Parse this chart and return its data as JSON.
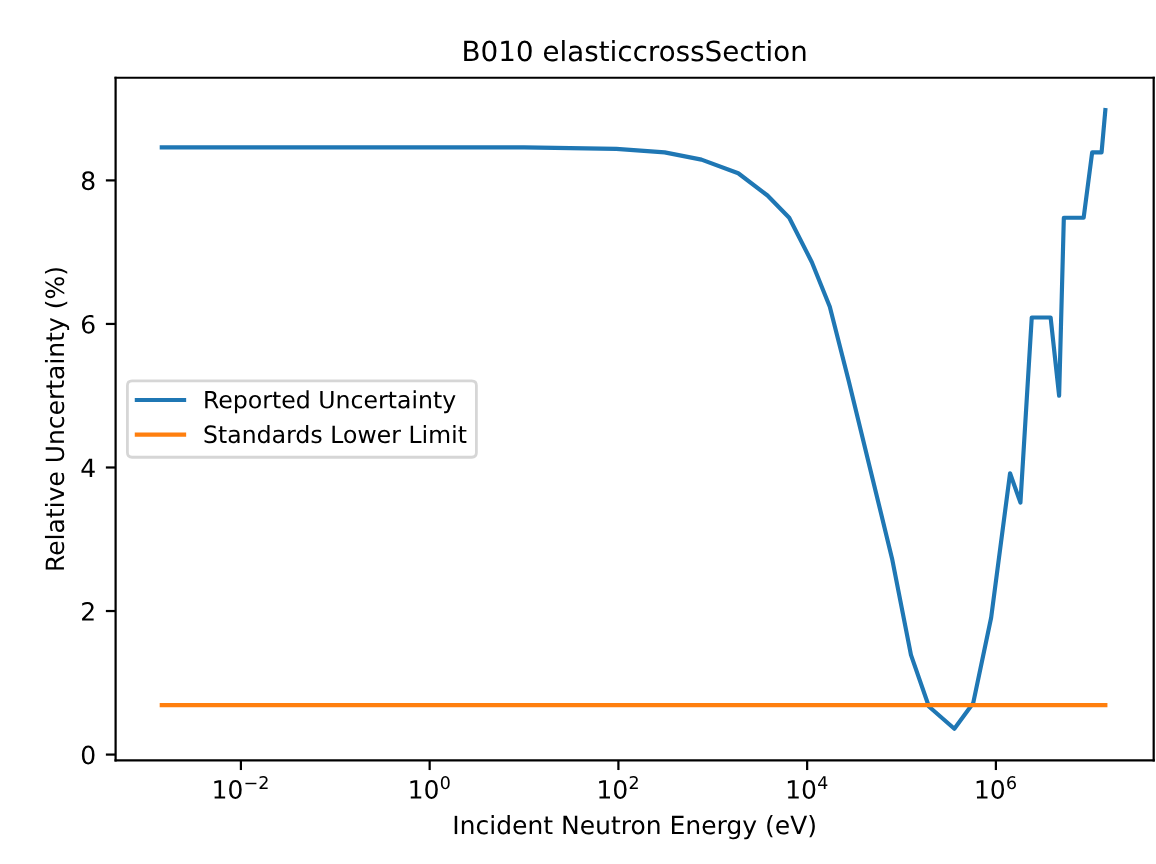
{
  "chart_data": {
    "type": "line",
    "title": "B010 elasticcrossSection",
    "xlabel": "Incident Neutron Energy (eV)",
    "ylabel": "Relative Uncertainty (%)",
    "log": "x",
    "xlim": [
      0.00047,
      47000000
    ],
    "ylim": [
      -0.08,
      9.43
    ],
    "xticks": [
      {
        "value": 0.01,
        "label": "10$^{−2}$"
      },
      {
        "value": 1,
        "label": "10$^{0}$"
      },
      {
        "value": 100,
        "label": "10$^{2}$"
      },
      {
        "value": 10000,
        "label": "10$^{4}$"
      },
      {
        "value": 1000000,
        "label": "10$^{6}$"
      }
    ],
    "yticks": [
      0,
      2,
      4,
      6,
      8
    ],
    "grid": false,
    "legend": "center left",
    "series": [
      {
        "name": "Reported Uncertainty",
        "color": "#1f77b4",
        "x": [
          0.00145,
          10,
          95,
          309,
          759,
          1862,
          3802,
          6457,
          11220,
          17380,
          27540,
          46770,
          79430,
          125900,
          195000,
          363100,
          575400,
          891300,
          1413000,
          1820000,
          2399000,
          3802000,
          4677000,
          5248000,
          8511000,
          10470000,
          13180000,
          14450000
        ],
        "values": [
          8.46,
          8.46,
          8.44,
          8.39,
          8.29,
          8.1,
          7.79,
          7.48,
          6.86,
          6.24,
          5.21,
          3.97,
          2.73,
          1.39,
          0.67,
          0.36,
          0.72,
          1.91,
          3.92,
          3.51,
          6.09,
          6.09,
          5.0,
          7.48,
          7.48,
          8.39,
          8.39,
          8.98
        ]
      },
      {
        "name": "Standards Lower Limit",
        "color": "#ff7f0e",
        "x": [
          0.00145,
          14450000
        ],
        "values": [
          0.69,
          0.69
        ]
      }
    ]
  }
}
